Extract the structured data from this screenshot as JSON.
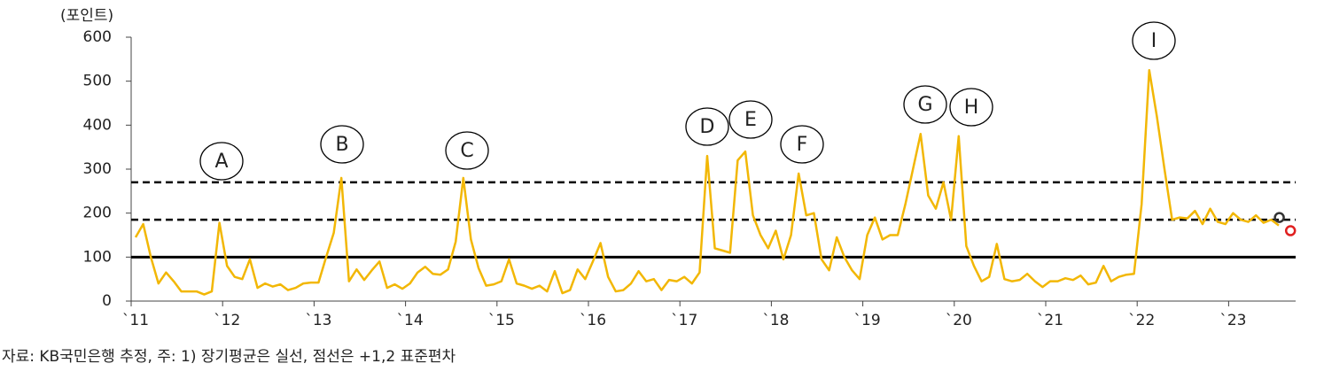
{
  "chart_data": {
    "type": "line",
    "y_axis_label": "(포인트)",
    "source": "자료: KB국민은행 추정, 주: 1) 장기평균은 실선, 점선은 +1,2 표준편차",
    "categories": [
      "`11",
      null,
      null,
      null,
      null,
      null,
      null,
      null,
      null,
      null,
      null,
      null,
      "`12",
      null,
      null,
      null,
      null,
      null,
      null,
      null,
      null,
      null,
      null,
      null,
      "`13",
      null,
      null,
      null,
      null,
      null,
      null,
      null,
      null,
      null,
      null,
      null,
      "`14",
      null,
      null,
      null,
      null,
      null,
      null,
      null,
      null,
      null,
      null,
      null,
      "`15",
      null,
      null,
      null,
      null,
      null,
      null,
      null,
      null,
      null,
      null,
      null,
      "`16",
      null,
      null,
      null,
      null,
      null,
      null,
      null,
      null,
      null,
      null,
      null,
      "`17",
      null,
      null,
      null,
      null,
      null,
      null,
      null,
      null,
      null,
      null,
      null,
      "`18",
      null,
      null,
      null,
      null,
      null,
      null,
      null,
      null,
      null,
      null,
      null,
      "`19",
      null,
      null,
      null,
      null,
      null,
      null,
      null,
      null,
      null,
      null,
      null,
      "`20",
      null,
      null,
      null,
      null,
      null,
      null,
      null,
      null,
      null,
      null,
      null,
      "`21",
      null,
      null,
      null,
      null,
      null,
      null,
      null,
      null,
      null,
      null,
      null,
      "`22",
      null,
      null,
      null,
      null,
      null,
      null,
      null,
      null,
      null,
      null,
      null,
      "`23",
      null,
      null,
      null,
      null,
      null,
      null,
      null,
      null
    ],
    "series": [
      {
        "color": "#f2b705",
        "values": [
          145,
          175,
          100,
          40,
          65,
          45,
          22,
          22,
          22,
          15,
          22,
          178,
          80,
          55,
          50,
          95,
          30,
          40,
          33,
          38,
          25,
          30,
          40,
          42,
          42,
          100,
          155,
          280,
          45,
          72,
          48,
          70,
          90,
          30,
          38,
          28,
          40,
          65,
          78,
          62,
          60,
          72,
          135,
          280,
          140,
          75,
          35,
          38,
          45,
          95,
          40,
          35,
          28,
          35,
          22,
          68,
          18,
          25,
          72,
          50,
          90,
          132,
          55,
          22,
          25,
          40,
          68,
          45,
          50,
          25,
          48,
          45,
          55,
          40,
          65,
          330,
          120,
          115,
          110,
          320,
          340,
          195,
          150,
          120,
          160,
          95,
          150,
          290,
          195,
          200,
          95,
          70,
          145,
          100,
          70,
          50,
          150,
          190,
          140,
          150,
          150,
          220,
          300,
          380,
          240,
          210,
          270,
          185,
          375,
          125,
          80,
          45,
          55,
          130,
          50,
          45,
          48,
          62,
          45,
          32,
          45,
          45,
          52,
          48,
          58,
          38,
          42,
          80,
          45,
          55,
          60,
          62,
          220,
          525,
          420,
          300,
          185,
          190,
          188,
          205,
          175,
          210,
          180,
          175,
          200,
          185,
          180,
          195,
          178,
          185,
          172,
          null,
          null
        ]
      }
    ],
    "markers": [
      {
        "value": 190,
        "color": "#333333"
      },
      {
        "value": 160,
        "color": "#e02020"
      }
    ],
    "reference_lines": [
      {
        "value": 100,
        "style": "solid"
      },
      {
        "value": 185,
        "style": "dashed"
      },
      {
        "value": 270,
        "style": "dashed"
      }
    ],
    "annotations": [
      "A",
      "B",
      "C",
      "D",
      "E",
      "F",
      "G",
      "H",
      "I"
    ],
    "ylim": [
      0,
      600
    ],
    "yticks": [
      0,
      100,
      200,
      300,
      400,
      500,
      600
    ]
  }
}
